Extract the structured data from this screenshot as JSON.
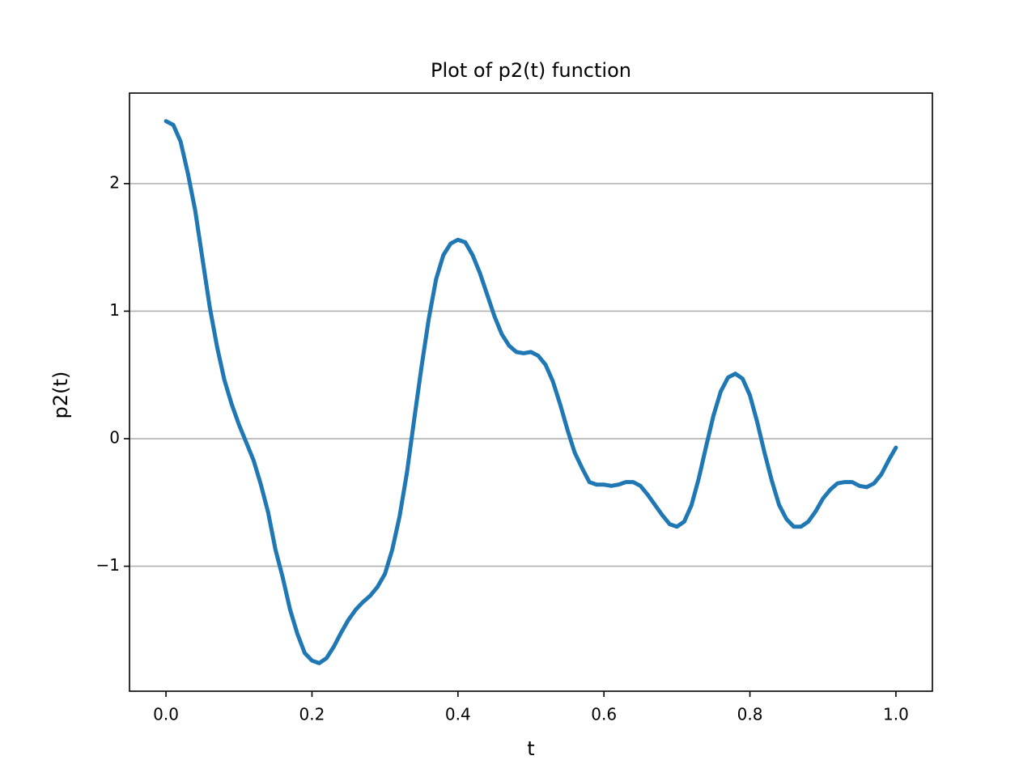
{
  "chart_data": {
    "type": "line",
    "title": "Plot of p2(t) function",
    "x_label": "t",
    "y_label": "p2(t)",
    "x": [
      0,
      0.01,
      0.02,
      0.03,
      0.04,
      0.05,
      0.06,
      0.07,
      0.08,
      0.09,
      0.1,
      0.11,
      0.12,
      0.13,
      0.14,
      0.15,
      0.16,
      0.17,
      0.18,
      0.19,
      0.2,
      0.21,
      0.22,
      0.23,
      0.24,
      0.25,
      0.26,
      0.27,
      0.28,
      0.29,
      0.3,
      0.31,
      0.32,
      0.33,
      0.34,
      0.35,
      0.36,
      0.37,
      0.38,
      0.39,
      0.4,
      0.41,
      0.42,
      0.43,
      0.44,
      0.45,
      0.46,
      0.47,
      0.48,
      0.49,
      0.5,
      0.51,
      0.52,
      0.53,
      0.54,
      0.55,
      0.56,
      0.57,
      0.58,
      0.59,
      0.6,
      0.61,
      0.62,
      0.63,
      0.64,
      0.65,
      0.66,
      0.67,
      0.68,
      0.69,
      0.7,
      0.71,
      0.72,
      0.73,
      0.74,
      0.75,
      0.76,
      0.77,
      0.78,
      0.79,
      0.8,
      0.81,
      0.82,
      0.83,
      0.84,
      0.85,
      0.86,
      0.87,
      0.88,
      0.89,
      0.9,
      0.91,
      0.92,
      0.93,
      0.94,
      0.95,
      0.96,
      0.97,
      0.98,
      0.99,
      1.0
    ],
    "series": [
      {
        "color": "#1f77b4",
        "values": [
          2.49,
          2.46,
          2.33,
          2.08,
          1.79,
          1.41,
          1.03,
          0.72,
          0.46,
          0.27,
          0.11,
          -0.03,
          -0.17,
          -0.36,
          -0.58,
          -0.87,
          -1.09,
          -1.34,
          -1.53,
          -1.68,
          -1.74,
          -1.76,
          -1.72,
          -1.63,
          -1.52,
          -1.42,
          -1.34,
          -1.28,
          -1.23,
          -1.16,
          -1.06,
          -0.87,
          -0.61,
          -0.27,
          0.15,
          0.56,
          0.94,
          1.25,
          1.44,
          1.53,
          1.56,
          1.54,
          1.44,
          1.3,
          1.13,
          0.96,
          0.82,
          0.73,
          0.68,
          0.67,
          0.68,
          0.65,
          0.58,
          0.45,
          0.27,
          0.07,
          -0.11,
          -0.23,
          -0.34,
          -0.36,
          -0.36,
          -0.37,
          -0.36,
          -0.34,
          -0.34,
          -0.37,
          -0.44,
          -0.52,
          -0.6,
          -0.67,
          -0.69,
          -0.65,
          -0.52,
          -0.31,
          -0.06,
          0.18,
          0.37,
          0.48,
          0.51,
          0.47,
          0.34,
          0.13,
          -0.11,
          -0.33,
          -0.52,
          -0.63,
          -0.69,
          -0.69,
          -0.65,
          -0.57,
          -0.47,
          -0.4,
          -0.35,
          -0.34,
          -0.34,
          -0.37,
          -0.38,
          -0.35,
          -0.28,
          -0.17,
          -0.07
        ]
      }
    ],
    "xlim": [
      -0.05,
      1.05
    ],
    "ylim": [
      -1.98,
      2.71
    ],
    "xticks": [
      {
        "value": 0,
        "label": "0.0"
      },
      0.2,
      0.4,
      0.6,
      0.8,
      {
        "value": 1,
        "label": "1.0"
      }
    ],
    "yticks": [
      {
        "value": -1,
        "label": "−1"
      },
      0,
      1,
      2
    ],
    "grid": "y"
  }
}
